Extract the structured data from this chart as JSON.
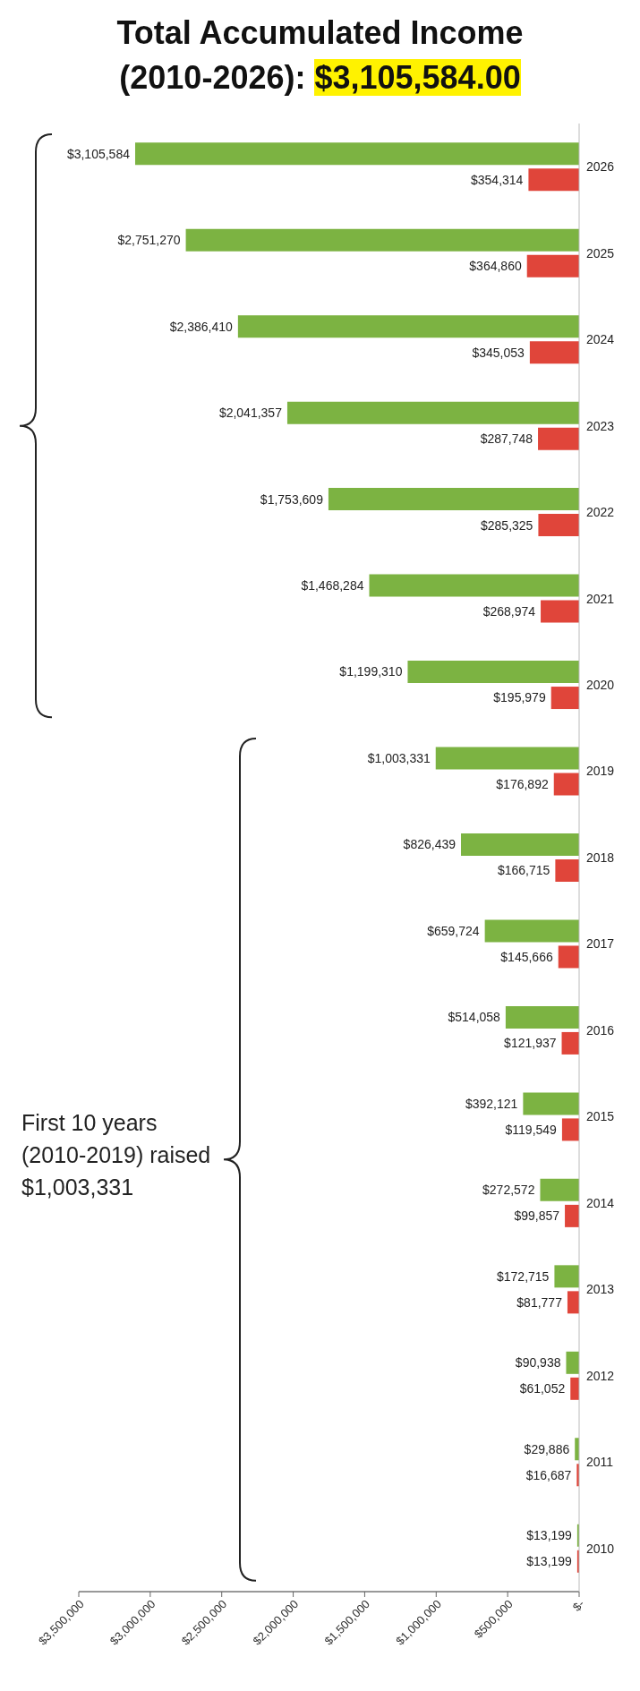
{
  "chart_data": {
    "type": "bar",
    "orientation": "horizontal",
    "title": "Total Accumulated Income",
    "subtitle": "(2010-2026): $3,105,584.00",
    "annotations": [
      "First 10 years (2010-2019) raised $1,003,331"
    ],
    "categories": [
      "2026",
      "2025",
      "2024",
      "2023",
      "2022",
      "2021",
      "2020",
      "2019",
      "2018",
      "2017",
      "2016",
      "2015",
      "2014",
      "2013",
      "2012",
      "2011",
      "2010"
    ],
    "series": [
      {
        "color": "#7cb342",
        "values": [
          3105584,
          2751270,
          2386410,
          2041357,
          1753609,
          1468284,
          1199310,
          1003331,
          826439,
          659724,
          514058,
          392121,
          272572,
          172715,
          90938,
          29886,
          13199
        ],
        "value_labels": [
          "$3,105,584",
          "$2,751,270",
          "$2,386,410",
          "$2,041,357",
          "$1,753,609",
          "$1,468,284",
          "$1,199,310",
          "$1,003,331",
          "$826,439",
          "$659,724",
          "$514,058",
          "$392,121",
          "$272,572",
          "$172,715",
          "$90,938",
          "$29,886",
          "$13,199"
        ]
      },
      {
        "color": "#e0453a",
        "values": [
          354314,
          364860,
          345053,
          287748,
          285325,
          268974,
          195979,
          176892,
          166715,
          145666,
          121937,
          119549,
          99857,
          81777,
          61052,
          16687,
          13199
        ],
        "value_labels": [
          "$354,314",
          "$364,860",
          "$345,053",
          "$287,748",
          "$285,325",
          "$268,974",
          "$195,979",
          "$176,892",
          "$166,715",
          "$145,666",
          "$121,937",
          "$119,549",
          "$99,857",
          "$81,777",
          "$61,052",
          "$16,687",
          "$13,199"
        ]
      }
    ],
    "xlim": [
      3500000,
      0
    ],
    "xticks": [
      {
        "value": 0,
        "label": "$-"
      },
      {
        "value": 500000,
        "label": "$500,000"
      },
      {
        "value": 1000000,
        "label": "$1,000,000"
      },
      {
        "value": 1500000,
        "label": "$1,500,000"
      },
      {
        "value": 2000000,
        "label": "$2,000,000"
      },
      {
        "value": 2500000,
        "label": "$2,500,000"
      },
      {
        "value": 3000000,
        "label": "$3,000,000"
      },
      {
        "value": 3500000,
        "label": "$3,500,000"
      }
    ]
  }
}
